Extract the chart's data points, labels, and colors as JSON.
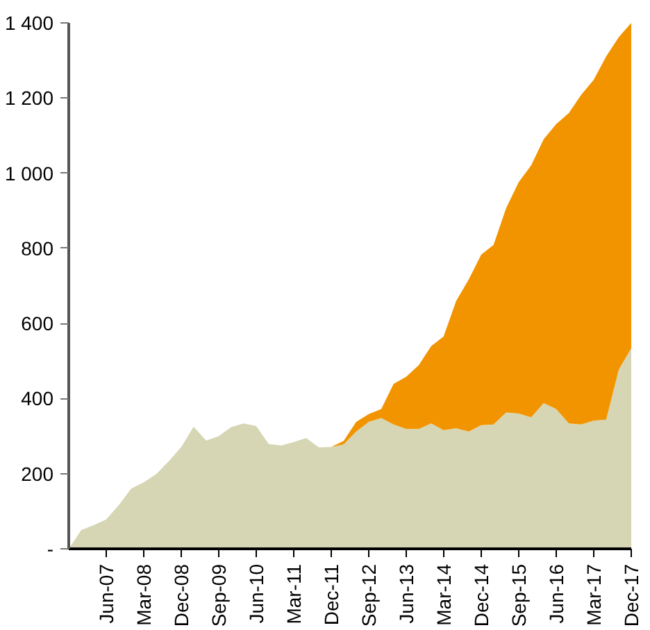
{
  "chart_data": {
    "type": "area",
    "stacked": true,
    "x": [
      "2006-09",
      "2006-12",
      "2007-03",
      "2007-06",
      "2007-09",
      "2007-12",
      "2008-03",
      "2008-06",
      "2008-09",
      "2008-12",
      "2009-03",
      "2009-06",
      "2009-09",
      "2009-12",
      "2010-03",
      "2010-06",
      "2010-09",
      "2010-12",
      "2011-03",
      "2011-06",
      "2011-09",
      "2011-12",
      "2012-03",
      "2012-06",
      "2012-09",
      "2012-12",
      "2013-03",
      "2013-06",
      "2013-09",
      "2013-12",
      "2014-03",
      "2014-06",
      "2014-09",
      "2014-12",
      "2015-03",
      "2015-06",
      "2015-09",
      "2015-12",
      "2016-03",
      "2016-06",
      "2016-09",
      "2016-12",
      "2017-03",
      "2017-06",
      "2017-09",
      "2017-12"
    ],
    "series": [
      {
        "color": "#d6d6b4",
        "values": [
          0,
          50,
          63,
          78,
          116,
          160,
          177,
          199,
          233,
          271,
          325,
          288,
          300,
          324,
          334,
          327,
          279,
          275,
          284,
          295,
          270,
          271,
          278,
          312,
          338,
          348,
          331,
          319,
          319,
          334,
          316,
          321,
          312,
          329,
          331,
          363,
          360,
          350,
          388,
          372,
          334,
          331,
          341,
          344,
          477,
          534
        ]
      },
      {
        "color": "#f29400",
        "values": [
          0,
          0,
          0,
          0,
          0,
          0,
          0,
          0,
          0,
          0,
          0,
          0,
          0,
          0,
          0,
          0,
          0,
          0,
          0,
          0,
          0,
          0,
          9,
          26,
          21,
          24,
          108,
          139,
          170,
          206,
          249,
          339,
          405,
          454,
          478,
          544,
          616,
          671,
          702,
          759,
          826,
          878,
          907,
          967,
          885,
          866
        ]
      }
    ],
    "xlim": [
      "2006-09",
      "2017-12"
    ],
    "xticks": [
      {
        "value": "2007-06",
        "label": "Jun-07"
      },
      {
        "value": "2008-03",
        "label": "Mar-08"
      },
      {
        "value": "2008-12",
        "label": "Dec-08"
      },
      {
        "value": "2009-09",
        "label": "Sep-09"
      },
      {
        "value": "2010-06",
        "label": "Jun-10"
      },
      {
        "value": "2011-03",
        "label": "Mar-11"
      },
      {
        "value": "2011-12",
        "label": "Dec-11"
      },
      {
        "value": "2012-09",
        "label": "Sep-12"
      },
      {
        "value": "2013-06",
        "label": "Jun-13"
      },
      {
        "value": "2014-03",
        "label": "Mar-14"
      },
      {
        "value": "2014-12",
        "label": "Dec-14"
      },
      {
        "value": "2015-09",
        "label": "Sep-15"
      },
      {
        "value": "2016-06",
        "label": "Jun-16"
      },
      {
        "value": "2017-03",
        "label": "Mar-17"
      },
      {
        "value": "2017-12",
        "label": "Dec-17"
      }
    ],
    "ylim": [
      0,
      1400
    ],
    "yticks": [
      {
        "value": 0,
        "label": "-"
      },
      200,
      400,
      600,
      800,
      {
        "value": 1000,
        "label": "1 000"
      },
      {
        "value": 1200,
        "label": "1 200"
      },
      {
        "value": 1400,
        "label": "1 400"
      }
    ]
  }
}
